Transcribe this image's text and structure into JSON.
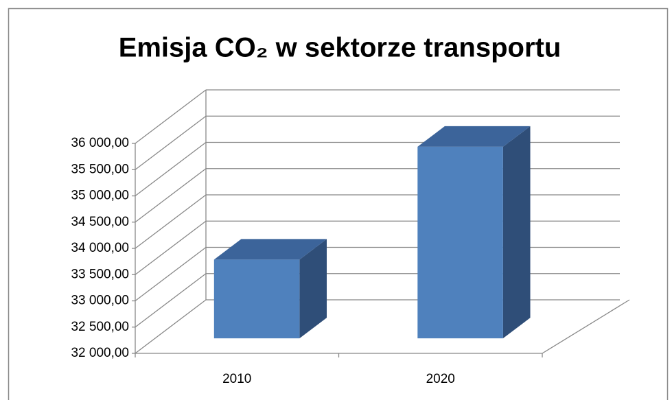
{
  "chart_data": {
    "type": "bar3d",
    "title": "Emisja CO₂ w sektorze transportu",
    "categories": [
      "2010",
      "2020"
    ],
    "values": [
      33500,
      35650
    ],
    "colors": {
      "front": "#4f81bd",
      "top": "#3c649a",
      "side": "#2f4e78"
    },
    "ylim": [
      32000,
      36000
    ],
    "yticks": [
      {
        "value": 32000,
        "label": "32 000,00"
      },
      {
        "value": 32500,
        "label": "32 500,00"
      },
      {
        "value": 33000,
        "label": "33 000,00"
      },
      {
        "value": 33500,
        "label": "33 500,00"
      },
      {
        "value": 34000,
        "label": "34 000,00"
      },
      {
        "value": 34500,
        "label": "34 500,00"
      },
      {
        "value": 35000,
        "label": "35 000,00"
      },
      {
        "value": 35500,
        "label": "35 500,00"
      },
      {
        "value": 36000,
        "label": "36 000,00"
      }
    ],
    "grid": true
  }
}
